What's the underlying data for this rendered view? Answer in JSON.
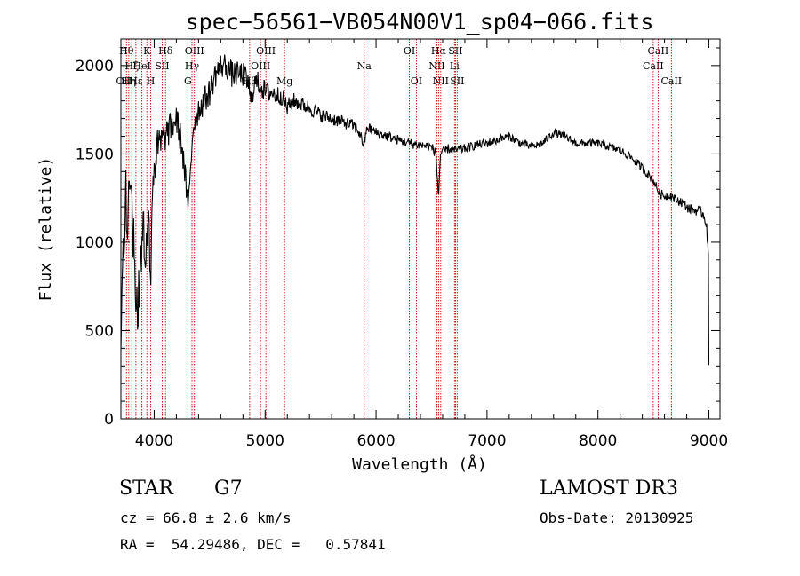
{
  "chart_data": {
    "type": "line",
    "title": "spec−56561−VB054N00V1_sp04−066.fits",
    "xlabel": "Wavelength (Å)",
    "ylabel": "Flux (relative)",
    "xlim": [
      3700,
      9100
    ],
    "ylim": [
      0,
      2150
    ],
    "xticks": [
      4000,
      5000,
      6000,
      7000,
      8000,
      9000
    ],
    "yticks": [
      0,
      500,
      1000,
      1500,
      2000
    ],
    "grid": false,
    "line_color": "#000000",
    "marker_color": "#cc0000",
    "anchors": [
      [
        3700,
        320
      ],
      [
        3715,
        900
      ],
      [
        3730,
        1100
      ],
      [
        3745,
        1300
      ],
      [
        3760,
        1000
      ],
      [
        3780,
        1420
      ],
      [
        3800,
        1200
      ],
      [
        3820,
        900
      ],
      [
        3835,
        700
      ],
      [
        3850,
        600
      ],
      [
        3870,
        780
      ],
      [
        3885,
        950
      ],
      [
        3900,
        1250
      ],
      [
        3915,
        900
      ],
      [
        3930,
        1000
      ],
      [
        3950,
        1250
      ],
      [
        3965,
        700
      ],
      [
        3980,
        1250
      ],
      [
        4000,
        1450
      ],
      [
        4050,
        1550
      ],
      [
        4100,
        1600
      ],
      [
        4150,
        1650
      ],
      [
        4200,
        1700
      ],
      [
        4250,
        1550
      ],
      [
        4290,
        1300
      ],
      [
        4305,
        1150
      ],
      [
        4320,
        1350
      ],
      [
        4350,
        1650
      ],
      [
        4400,
        1750
      ],
      [
        4450,
        1800
      ],
      [
        4500,
        1850
      ],
      [
        4550,
        1950
      ],
      [
        4600,
        2000
      ],
      [
        4650,
        2000
      ],
      [
        4700,
        1950
      ],
      [
        4750,
        1950
      ],
      [
        4800,
        1950
      ],
      [
        4850,
        1900
      ],
      [
        4870,
        1780
      ],
      [
        4900,
        1900
      ],
      [
        4950,
        1900
      ],
      [
        5000,
        1850
      ],
      [
        5050,
        1850
      ],
      [
        5100,
        1830
      ],
      [
        5150,
        1830
      ],
      [
        5200,
        1760
      ],
      [
        5250,
        1800
      ],
      [
        5300,
        1790
      ],
      [
        5400,
        1760
      ],
      [
        5500,
        1720
      ],
      [
        5600,
        1700
      ],
      [
        5700,
        1680
      ],
      [
        5800,
        1660
      ],
      [
        5850,
        1620
      ],
      [
        5890,
        1550
      ],
      [
        5920,
        1650
      ],
      [
        6000,
        1620
      ],
      [
        6100,
        1600
      ],
      [
        6200,
        1580
      ],
      [
        6300,
        1560
      ],
      [
        6400,
        1550
      ],
      [
        6500,
        1540
      ],
      [
        6540,
        1500
      ],
      [
        6563,
        1250
      ],
      [
        6580,
        1500
      ],
      [
        6650,
        1530
      ],
      [
        6700,
        1520
      ],
      [
        6800,
        1530
      ],
      [
        6900,
        1550
      ],
      [
        7000,
        1560
      ],
      [
        7100,
        1580
      ],
      [
        7200,
        1600
      ],
      [
        7300,
        1560
      ],
      [
        7400,
        1540
      ],
      [
        7500,
        1560
      ],
      [
        7600,
        1620
      ],
      [
        7700,
        1600
      ],
      [
        7800,
        1560
      ],
      [
        7900,
        1560
      ],
      [
        8000,
        1560
      ],
      [
        8100,
        1540
      ],
      [
        8200,
        1520
      ],
      [
        8300,
        1480
      ],
      [
        8400,
        1420
      ],
      [
        8500,
        1350
      ],
      [
        8550,
        1280
      ],
      [
        8600,
        1260
      ],
      [
        8650,
        1270
      ],
      [
        8700,
        1240
      ],
      [
        8750,
        1230
      ],
      [
        8800,
        1200
      ],
      [
        8850,
        1180
      ],
      [
        8900,
        1180
      ],
      [
        8950,
        1160
      ],
      [
        8980,
        1100
      ],
      [
        8995,
        900
      ],
      [
        9000,
        300
      ]
    ],
    "noise": [
      [
        3700,
        180
      ],
      [
        4000,
        150
      ],
      [
        4100,
        90
      ],
      [
        4400,
        80
      ],
      [
        4900,
        70
      ],
      [
        5300,
        45
      ],
      [
        6000,
        30
      ],
      [
        7000,
        25
      ],
      [
        8000,
        22
      ],
      [
        9000,
        30
      ]
    ],
    "lines": [
      {
        "wave": 3727,
        "label": "OII",
        "row": 2
      },
      {
        "wave": 3750,
        "label": "Hθ",
        "row": 0
      },
      {
        "wave": 3771,
        "label": "Hη",
        "row": 2
      },
      {
        "wave": 3798,
        "label": "Hζ",
        "row": 1
      },
      {
        "wave": 3835,
        "label": "Hε",
        "row": 2
      },
      {
        "wave": 3889,
        "label": "HeI",
        "row": 1
      },
      {
        "wave": 3934,
        "label": "K",
        "row": 0
      },
      {
        "wave": 3969,
        "label": "H",
        "row": 2
      },
      {
        "wave": 4072,
        "label": "SII",
        "row": 1
      },
      {
        "wave": 4102,
        "label": "Hδ",
        "row": 0
      },
      {
        "wave": 4304,
        "label": "G",
        "row": 2
      },
      {
        "wave": 4341,
        "label": "Hγ",
        "row": 1
      },
      {
        "wave": 4363,
        "label": "OIII",
        "row": 0
      },
      {
        "wave": 4861,
        "label": "Hβ",
        "row": 2
      },
      {
        "wave": 4959,
        "label": "OIII",
        "row": 1
      },
      {
        "wave": 5007,
        "label": "OIII",
        "row": 0
      },
      {
        "wave": 5175,
        "label": "Mg",
        "row": 2
      },
      {
        "wave": 5893,
        "label": "Na",
        "row": 1
      },
      {
        "wave": 6300,
        "label": "OI",
        "row": 0
      },
      {
        "wave": 6363,
        "label": "OI",
        "row": 2
      },
      {
        "wave": 6548,
        "label": "NII",
        "row": 1
      },
      {
        "wave": 6563,
        "label": "Hα",
        "row": 0
      },
      {
        "wave": 6583,
        "label": "NII",
        "row": 2
      },
      {
        "wave": 6707,
        "label": "Li",
        "row": 1
      },
      {
        "wave": 6716,
        "label": "SII",
        "row": 0
      },
      {
        "wave": 6731,
        "label": "SII",
        "row": 2
      },
      {
        "wave": 8498,
        "label": "CaII",
        "row": 1
      },
      {
        "wave": 8542,
        "label": "CaII",
        "row": 0
      },
      {
        "wave": 8662,
        "label": "CaII",
        "row": 2
      }
    ]
  },
  "footer": {
    "class_label": "STAR",
    "subclass": "G7",
    "survey": "LAMOST DR3",
    "redshift": "cz = 66.8 ± 2.6 km/s",
    "obs_date": "Obs-Date: 20130925",
    "coords": "RA =  54.29486, DEC =   0.57841"
  }
}
